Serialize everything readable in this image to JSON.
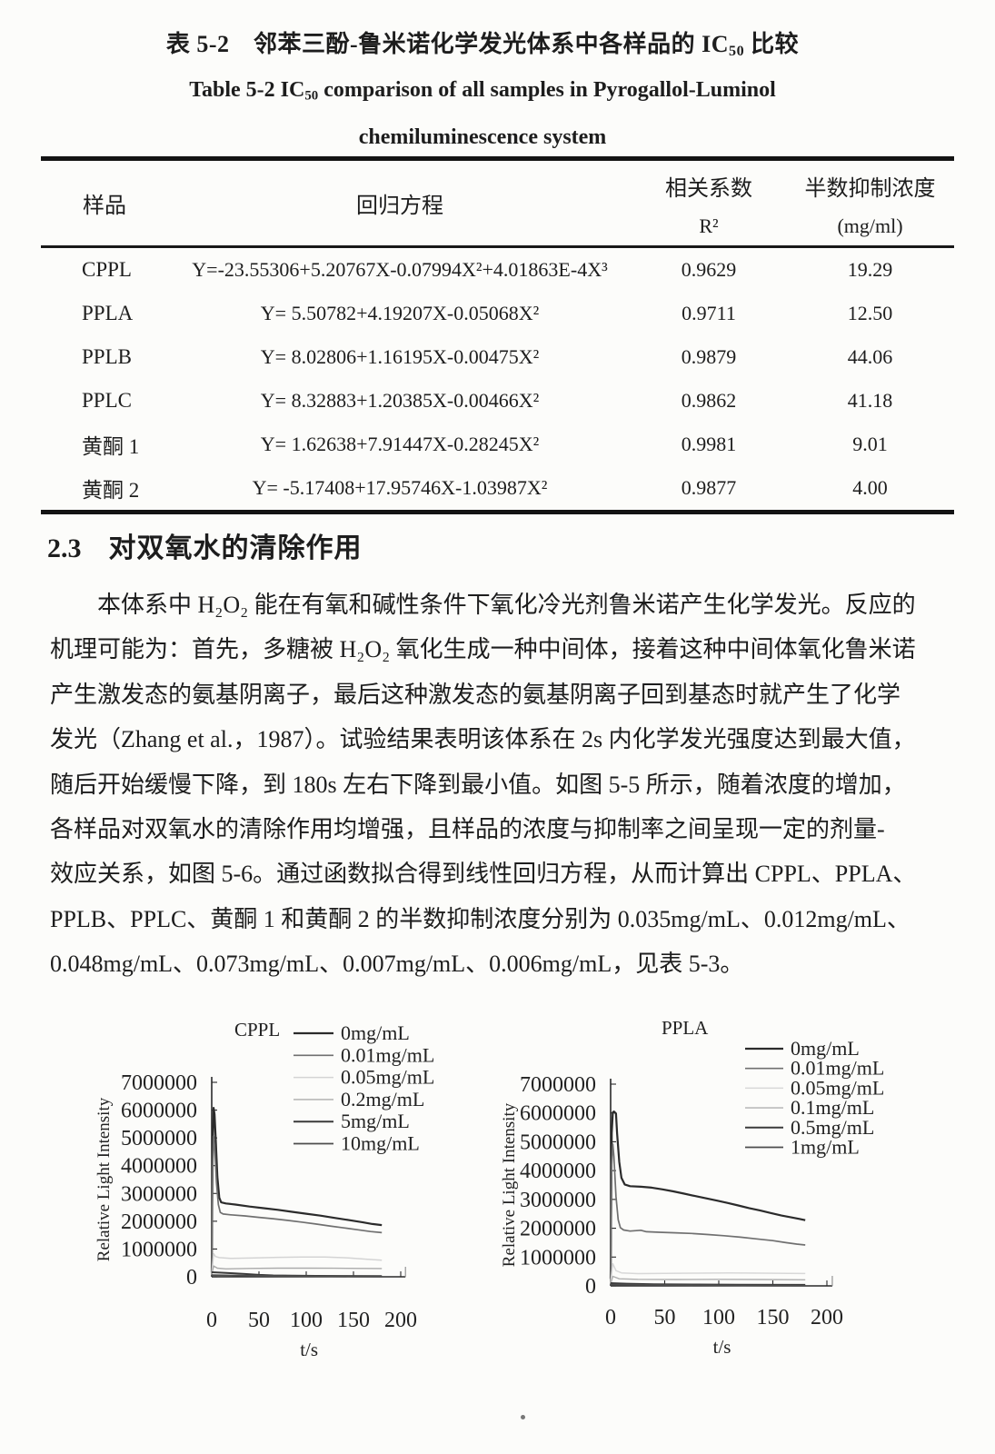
{
  "caption": {
    "zh_prefix": "表 5-2　邻苯三酚-鲁米诺化学发光体系中各样品的 IC",
    "sub": "50",
    "zh_suffix": " 比较",
    "en_prefix": "Table 5-2 IC",
    "en_suffix": " comparison of all samples in Pyrogallol-Luminol",
    "en_line2": "chemiluminescence system"
  },
  "table": {
    "headers": {
      "sample": "样品",
      "equation": "回归方程",
      "r2_top": "相关系数",
      "r2_bottom": "R²",
      "ic_top": "半数抑制浓度",
      "ic_bottom": "(mg/ml)"
    },
    "rows": [
      {
        "sample": "CPPL",
        "equation": "Y=-23.55306+5.20767X-0.07994X²+4.01863E-4X³",
        "r2": "0.9629",
        "ic50": "19.29"
      },
      {
        "sample": "PPLA",
        "equation": "Y= 5.50782+4.19207X-0.05068X²",
        "r2": "0.9711",
        "ic50": "12.50"
      },
      {
        "sample": "PPLB",
        "equation": "Y= 8.02806+1.16195X-0.00475X²",
        "r2": "0.9879",
        "ic50": "44.06"
      },
      {
        "sample": "PPLC",
        "equation": "Y= 8.32883+1.20385X-0.00466X²",
        "r2": "0.9862",
        "ic50": "41.18"
      },
      {
        "sample": "黄酮 1",
        "equation": "Y=  1.62638+7.91447X-0.28245X²",
        "r2": "0.9981",
        "ic50": "9.01"
      },
      {
        "sample": "黄酮 2",
        "equation": "Y= -5.17408+17.95746X-1.03987X²",
        "r2": "0.9877",
        "ic50": "4.00"
      }
    ]
  },
  "section": {
    "number": "2.3",
    "title": "对双氧水的清除作用"
  },
  "paragraph": {
    "lines": [
      "本体系中 H₂O₂ 能在有氧和碱性条件下氧化冷光剂鲁米诺产生化学发光。反应的",
      "机理可能为：首先，多糖被 H₂O₂ 氧化生成一种中间体，接着这种中间体氧化鲁米诺",
      "产生激发态的氨基阴离子，最后这种激发态的氨基阴离子回到基态时就产生了化学",
      "发光（Zhang et al.，1987）。试验结果表明该体系在 2s 内化学发光强度达到最大值，",
      "随后开始缓慢下降，到 180s 左右下降到最小值。如图 5-5 所示，随着浓度的增加，",
      "各样品对双氧水的清除作用均增强，且样品的浓度与抑制率之间呈现一定的剂量-",
      "效应关系，如图 5-6。通过函数拟合得到线性回归方程，从而计算出 CPPL、PPLA、",
      "PPLB、PPLC、黄酮 1 和黄酮 2 的半数抑制浓度分别为 0.035mg/mL、0.012mg/mL、",
      "0.048mg/mL、0.073mg/mL、0.007mg/mL、0.006mg/mL，见表 5-3。"
    ]
  },
  "chart_data": [
    {
      "type": "line",
      "title": "CPPL",
      "xlabel": "t/s",
      "ylabel": "Relative Light Intensity",
      "xlim": [
        0,
        200
      ],
      "ylim": [
        0,
        7000000
      ],
      "xticks": [
        0,
        50,
        100,
        150,
        200
      ],
      "yticks": [
        0,
        1000000,
        2000000,
        3000000,
        4000000,
        5000000,
        6000000,
        7000000
      ],
      "grid": false,
      "legend_position": "top-right",
      "series": [
        {
          "name": "0mg/mL",
          "color": "#2b2b2b",
          "width": 2.2,
          "points": [
            [
              0,
              150000
            ],
            [
              1,
              4600000
            ],
            [
              2,
              6080000
            ],
            [
              3,
              5850000
            ],
            [
              4,
              5100000
            ],
            [
              6,
              3600000
            ],
            [
              8,
              2850000
            ],
            [
              10,
              2680000
            ],
            [
              15,
              2640000
            ],
            [
              25,
              2600000
            ],
            [
              40,
              2530000
            ],
            [
              55,
              2470000
            ],
            [
              70,
              2410000
            ],
            [
              85,
              2340000
            ],
            [
              100,
              2270000
            ],
            [
              115,
              2200000
            ],
            [
              130,
              2120000
            ],
            [
              145,
              2040000
            ],
            [
              160,
              1960000
            ],
            [
              170,
              1900000
            ],
            [
              180,
              1860000
            ]
          ]
        },
        {
          "name": "0.01mg/mL",
          "color": "#707070",
          "width": 1.7,
          "points": [
            [
              0,
              120000
            ],
            [
              1,
              3900000
            ],
            [
              2,
              5060000
            ],
            [
              3,
              4750000
            ],
            [
              5,
              3400000
            ],
            [
              7,
              2600000
            ],
            [
              9,
              2320000
            ],
            [
              12,
              2260000
            ],
            [
              20,
              2230000
            ],
            [
              35,
              2190000
            ],
            [
              50,
              2140000
            ],
            [
              65,
              2090000
            ],
            [
              80,
              2030000
            ],
            [
              95,
              1970000
            ],
            [
              110,
              1900000
            ],
            [
              125,
              1830000
            ],
            [
              140,
              1760000
            ],
            [
              155,
              1690000
            ],
            [
              168,
              1630000
            ],
            [
              180,
              1590000
            ]
          ]
        },
        {
          "name": "0.05mg/mL",
          "color": "#d4d4d4",
          "width": 1.5,
          "points": [
            [
              0,
              90000
            ],
            [
              2,
              830000
            ],
            [
              4,
              730000
            ],
            [
              8,
              690000
            ],
            [
              20,
              665000
            ],
            [
              45,
              680000
            ],
            [
              70,
              700000
            ],
            [
              95,
              712000
            ],
            [
              120,
              710000
            ],
            [
              145,
              680000
            ],
            [
              165,
              630000
            ],
            [
              180,
              600000
            ]
          ]
        },
        {
          "name": "0.2mg/mL",
          "color": "#ababab",
          "width": 1.4,
          "points": [
            [
              0,
              70000
            ],
            [
              2,
              390000
            ],
            [
              6,
              310000
            ],
            [
              15,
              285000
            ],
            [
              40,
              300000
            ],
            [
              70,
              310000
            ],
            [
              100,
              312000
            ],
            [
              130,
              308000
            ],
            [
              160,
              302000
            ],
            [
              180,
              298000
            ]
          ]
        },
        {
          "name": "5mg/mL",
          "color": "#3a3a3a",
          "width": 2.0,
          "points": [
            [
              0,
              165000
            ],
            [
              8,
              150000
            ],
            [
              20,
              130000
            ],
            [
              35,
              100000
            ],
            [
              50,
              70000
            ],
            [
              65,
              50000
            ],
            [
              85,
              40000
            ],
            [
              110,
              33000
            ],
            [
              140,
              28000
            ],
            [
              180,
              22000
            ]
          ]
        },
        {
          "name": "10mg/mL",
          "color": "#4d4d4d",
          "width": 1.8,
          "points": [
            [
              0,
              60000
            ],
            [
              15,
              52000
            ],
            [
              40,
              38000
            ],
            [
              70,
              26000
            ],
            [
              110,
              16000
            ],
            [
              150,
              10000
            ],
            [
              180,
              7000
            ]
          ]
        }
      ]
    },
    {
      "type": "line",
      "title": "PPLA",
      "xlabel": "t/s",
      "ylabel": "Relative Light Intensity",
      "xlim": [
        0,
        200
      ],
      "ylim": [
        0,
        7000000
      ],
      "xticks": [
        0,
        50,
        100,
        150,
        200
      ],
      "yticks": [
        0,
        1000000,
        2000000,
        3000000,
        4000000,
        5000000,
        6000000,
        7000000
      ],
      "grid": false,
      "legend_position": "top-right",
      "series": [
        {
          "name": "0mg/mL",
          "color": "#2b2b2b",
          "width": 2.2,
          "points": [
            [
              0,
              250000
            ],
            [
              1,
              5300000
            ],
            [
              2,
              6020000
            ],
            [
              3,
              6050000
            ],
            [
              5,
              5980000
            ],
            [
              6,
              5300000
            ],
            [
              8,
              4300000
            ],
            [
              10,
              3750000
            ],
            [
              13,
              3520000
            ],
            [
              18,
              3460000
            ],
            [
              28,
              3440000
            ],
            [
              38,
              3410000
            ],
            [
              48,
              3350000
            ],
            [
              58,
              3280000
            ],
            [
              68,
              3200000
            ],
            [
              78,
              3120000
            ],
            [
              88,
              3040000
            ],
            [
              98,
              2960000
            ],
            [
              108,
              2880000
            ],
            [
              118,
              2790000
            ],
            [
              128,
              2700000
            ],
            [
              138,
              2620000
            ],
            [
              148,
              2530000
            ],
            [
              158,
              2440000
            ],
            [
              168,
              2370000
            ],
            [
              175,
              2320000
            ],
            [
              180,
              2280000
            ]
          ]
        },
        {
          "name": "0.01mg/mL",
          "color": "#707070",
          "width": 1.7,
          "points": [
            [
              0,
              180000
            ],
            [
              1,
              4200000
            ],
            [
              2,
              4920000
            ],
            [
              3,
              4500000
            ],
            [
              5,
              3100000
            ],
            [
              7,
              2300000
            ],
            [
              9,
              2020000
            ],
            [
              12,
              1940000
            ],
            [
              18,
              1900000
            ],
            [
              28,
              1930000
            ],
            [
              33,
              1880000
            ],
            [
              45,
              1860000
            ],
            [
              60,
              1840000
            ],
            [
              75,
              1820000
            ],
            [
              90,
              1780000
            ],
            [
              105,
              1740000
            ],
            [
              120,
              1690000
            ],
            [
              135,
              1630000
            ],
            [
              150,
              1570000
            ],
            [
              162,
              1500000
            ],
            [
              172,
              1450000
            ],
            [
              180,
              1420000
            ]
          ]
        },
        {
          "name": "0.05mg/mL",
          "color": "#d8d8d8",
          "width": 1.5,
          "points": [
            [
              0,
              90000
            ],
            [
              2,
              770000
            ],
            [
              5,
              530000
            ],
            [
              10,
              450000
            ],
            [
              25,
              425000
            ],
            [
              50,
              432000
            ],
            [
              80,
              442000
            ],
            [
              110,
              448000
            ],
            [
              140,
              442000
            ],
            [
              165,
              435000
            ],
            [
              180,
              428000
            ]
          ]
        },
        {
          "name": "0.1mg/mL",
          "color": "#b0b0b0",
          "width": 1.4,
          "points": [
            [
              0,
              70000
            ],
            [
              2,
              330000
            ],
            [
              8,
              245000
            ],
            [
              25,
              228000
            ],
            [
              60,
              222000
            ],
            [
              100,
              226000
            ],
            [
              140,
              220000
            ],
            [
              180,
              210000
            ]
          ]
        },
        {
          "name": "0.5mg/mL",
          "color": "#3a3a3a",
          "width": 2.0,
          "points": [
            [
              0,
              95000
            ],
            [
              15,
              75000
            ],
            [
              40,
              58000
            ],
            [
              80,
              46000
            ],
            [
              120,
              40000
            ],
            [
              180,
              34000
            ]
          ]
        },
        {
          "name": "1mg/mL",
          "color": "#4d4d4d",
          "width": 1.8,
          "points": [
            [
              0,
              40000
            ],
            [
              40,
              30000
            ],
            [
              90,
              20000
            ],
            [
              140,
              11000
            ],
            [
              180,
              5000
            ]
          ]
        }
      ]
    }
  ]
}
